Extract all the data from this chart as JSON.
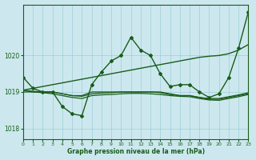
{
  "title": "Graphe pression niveau de la mer (hPa)",
  "background_color": "#cce8ee",
  "grid_color": "#9ecdd6",
  "line_color": "#1a5c1a",
  "xlim": [
    0,
    23
  ],
  "ylim": [
    1017.7,
    1021.4
  ],
  "yticks": [
    1018,
    1019,
    1020
  ],
  "xticks": [
    0,
    1,
    2,
    3,
    4,
    5,
    6,
    7,
    8,
    9,
    10,
    11,
    12,
    13,
    14,
    15,
    16,
    17,
    18,
    19,
    20,
    21,
    22,
    23
  ],
  "series_main": [
    1019.4,
    1019.1,
    1019.0,
    1019.0,
    1018.6,
    1018.4,
    1018.35,
    1019.2,
    1019.55,
    1019.85,
    1020.0,
    1020.5,
    1020.15,
    1020.0,
    1019.5,
    1019.15,
    1019.2,
    1019.2,
    1019.0,
    1018.85,
    1018.95,
    1019.4,
    1020.2,
    1021.2
  ],
  "series_diag": [
    1019.05,
    1019.1,
    1019.15,
    1019.2,
    1019.25,
    1019.3,
    1019.35,
    1019.4,
    1019.45,
    1019.5,
    1019.55,
    1019.6,
    1019.65,
    1019.7,
    1019.75,
    1019.8,
    1019.85,
    1019.9,
    1019.95,
    1019.98,
    1020.0,
    1020.05,
    1020.15,
    1020.3
  ],
  "series_flat1": [
    1019.05,
    1019.0,
    1019.0,
    1019.0,
    1018.95,
    1018.9,
    1018.9,
    1019.0,
    1019.0,
    1019.0,
    1019.0,
    1019.0,
    1019.0,
    1019.0,
    1019.0,
    1018.95,
    1018.9,
    1018.9,
    1018.85,
    1018.8,
    1018.8,
    1018.85,
    1018.9,
    1018.95
  ],
  "series_flat2": [
    1019.0,
    1019.0,
    1018.98,
    1018.95,
    1018.9,
    1018.85,
    1018.82,
    1018.9,
    1018.92,
    1018.93,
    1018.95,
    1018.96,
    1018.96,
    1018.95,
    1018.93,
    1018.9,
    1018.88,
    1018.87,
    1018.82,
    1018.78,
    1018.77,
    1018.82,
    1018.87,
    1018.93
  ],
  "series_flat3": [
    1019.05,
    1019.02,
    1019.0,
    1019.0,
    1018.95,
    1018.9,
    1018.88,
    1018.95,
    1018.97,
    1018.98,
    1019.0,
    1019.0,
    1019.0,
    1019.0,
    1018.98,
    1018.93,
    1018.9,
    1018.9,
    1018.85,
    1018.82,
    1018.82,
    1018.87,
    1018.92,
    1018.98
  ]
}
